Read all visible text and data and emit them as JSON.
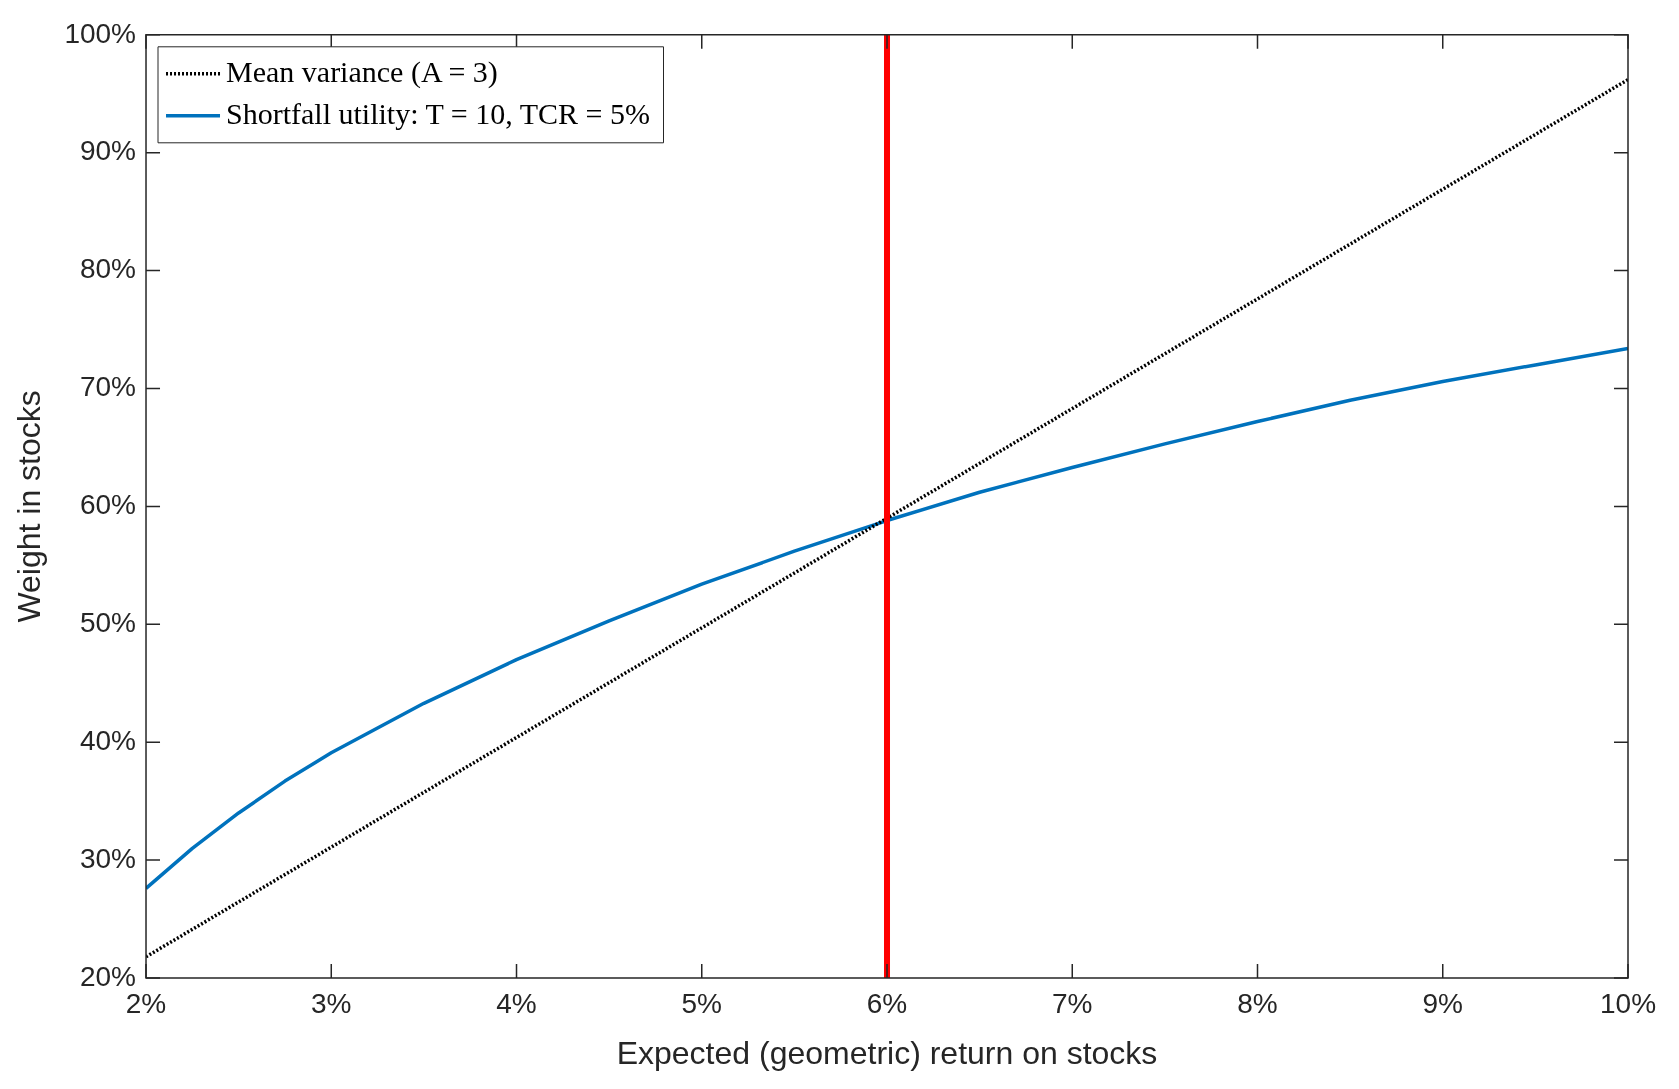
{
  "chart_data": {
    "type": "line",
    "xlabel": "Expected (geometric) return on stocks",
    "ylabel": "Weight in stocks",
    "xlim": [
      2,
      10
    ],
    "ylim": [
      20,
      100
    ],
    "xticks": [
      {
        "value": 2,
        "label": "2%"
      },
      {
        "value": 3,
        "label": "3%"
      },
      {
        "value": 4,
        "label": "4%"
      },
      {
        "value": 5,
        "label": "5%"
      },
      {
        "value": 6,
        "label": "6%"
      },
      {
        "value": 7,
        "label": "7%"
      },
      {
        "value": 8,
        "label": "8%"
      },
      {
        "value": 9,
        "label": "9%"
      },
      {
        "value": 10,
        "label": "10%"
      }
    ],
    "yticks": [
      {
        "value": 20,
        "label": "20%"
      },
      {
        "value": 30,
        "label": "30%"
      },
      {
        "value": 40,
        "label": "40%"
      },
      {
        "value": 50,
        "label": "50%"
      },
      {
        "value": 60,
        "label": "60%"
      },
      {
        "value": 70,
        "label": "70%"
      },
      {
        "value": 80,
        "label": "80%"
      },
      {
        "value": 90,
        "label": "90%"
      },
      {
        "value": 100,
        "label": "100%"
      }
    ],
    "grid": false,
    "legend": "top left",
    "marker": "none",
    "series": [
      {
        "name": "Mean variance (A = 3)",
        "color": "#000000",
        "line_style": "dotted",
        "x": [
          2,
          10
        ],
        "values": [
          21.8,
          96.2
        ]
      },
      {
        "name": "Shortfall utility: T = 10, TCR = 5%",
        "color": "#0072bd",
        "line_style": "solid",
        "x": [
          2,
          2.25,
          2.5,
          2.75,
          3,
          3.5,
          4,
          4.5,
          5,
          5.5,
          6,
          6.5,
          7,
          7.5,
          8,
          8.5,
          9,
          9.5,
          10
        ],
        "values": [
          27.6,
          31,
          34,
          36.7,
          39.1,
          43.3,
          47,
          50.3,
          53.4,
          56.2,
          58.8,
          61.2,
          63.3,
          65.3,
          67.2,
          69,
          70.6,
          72,
          73.4
        ]
      }
    ],
    "ref_lines": [
      {
        "axis": "x",
        "value": 6,
        "color": "#ff0000",
        "line_style": "solid"
      }
    ]
  }
}
